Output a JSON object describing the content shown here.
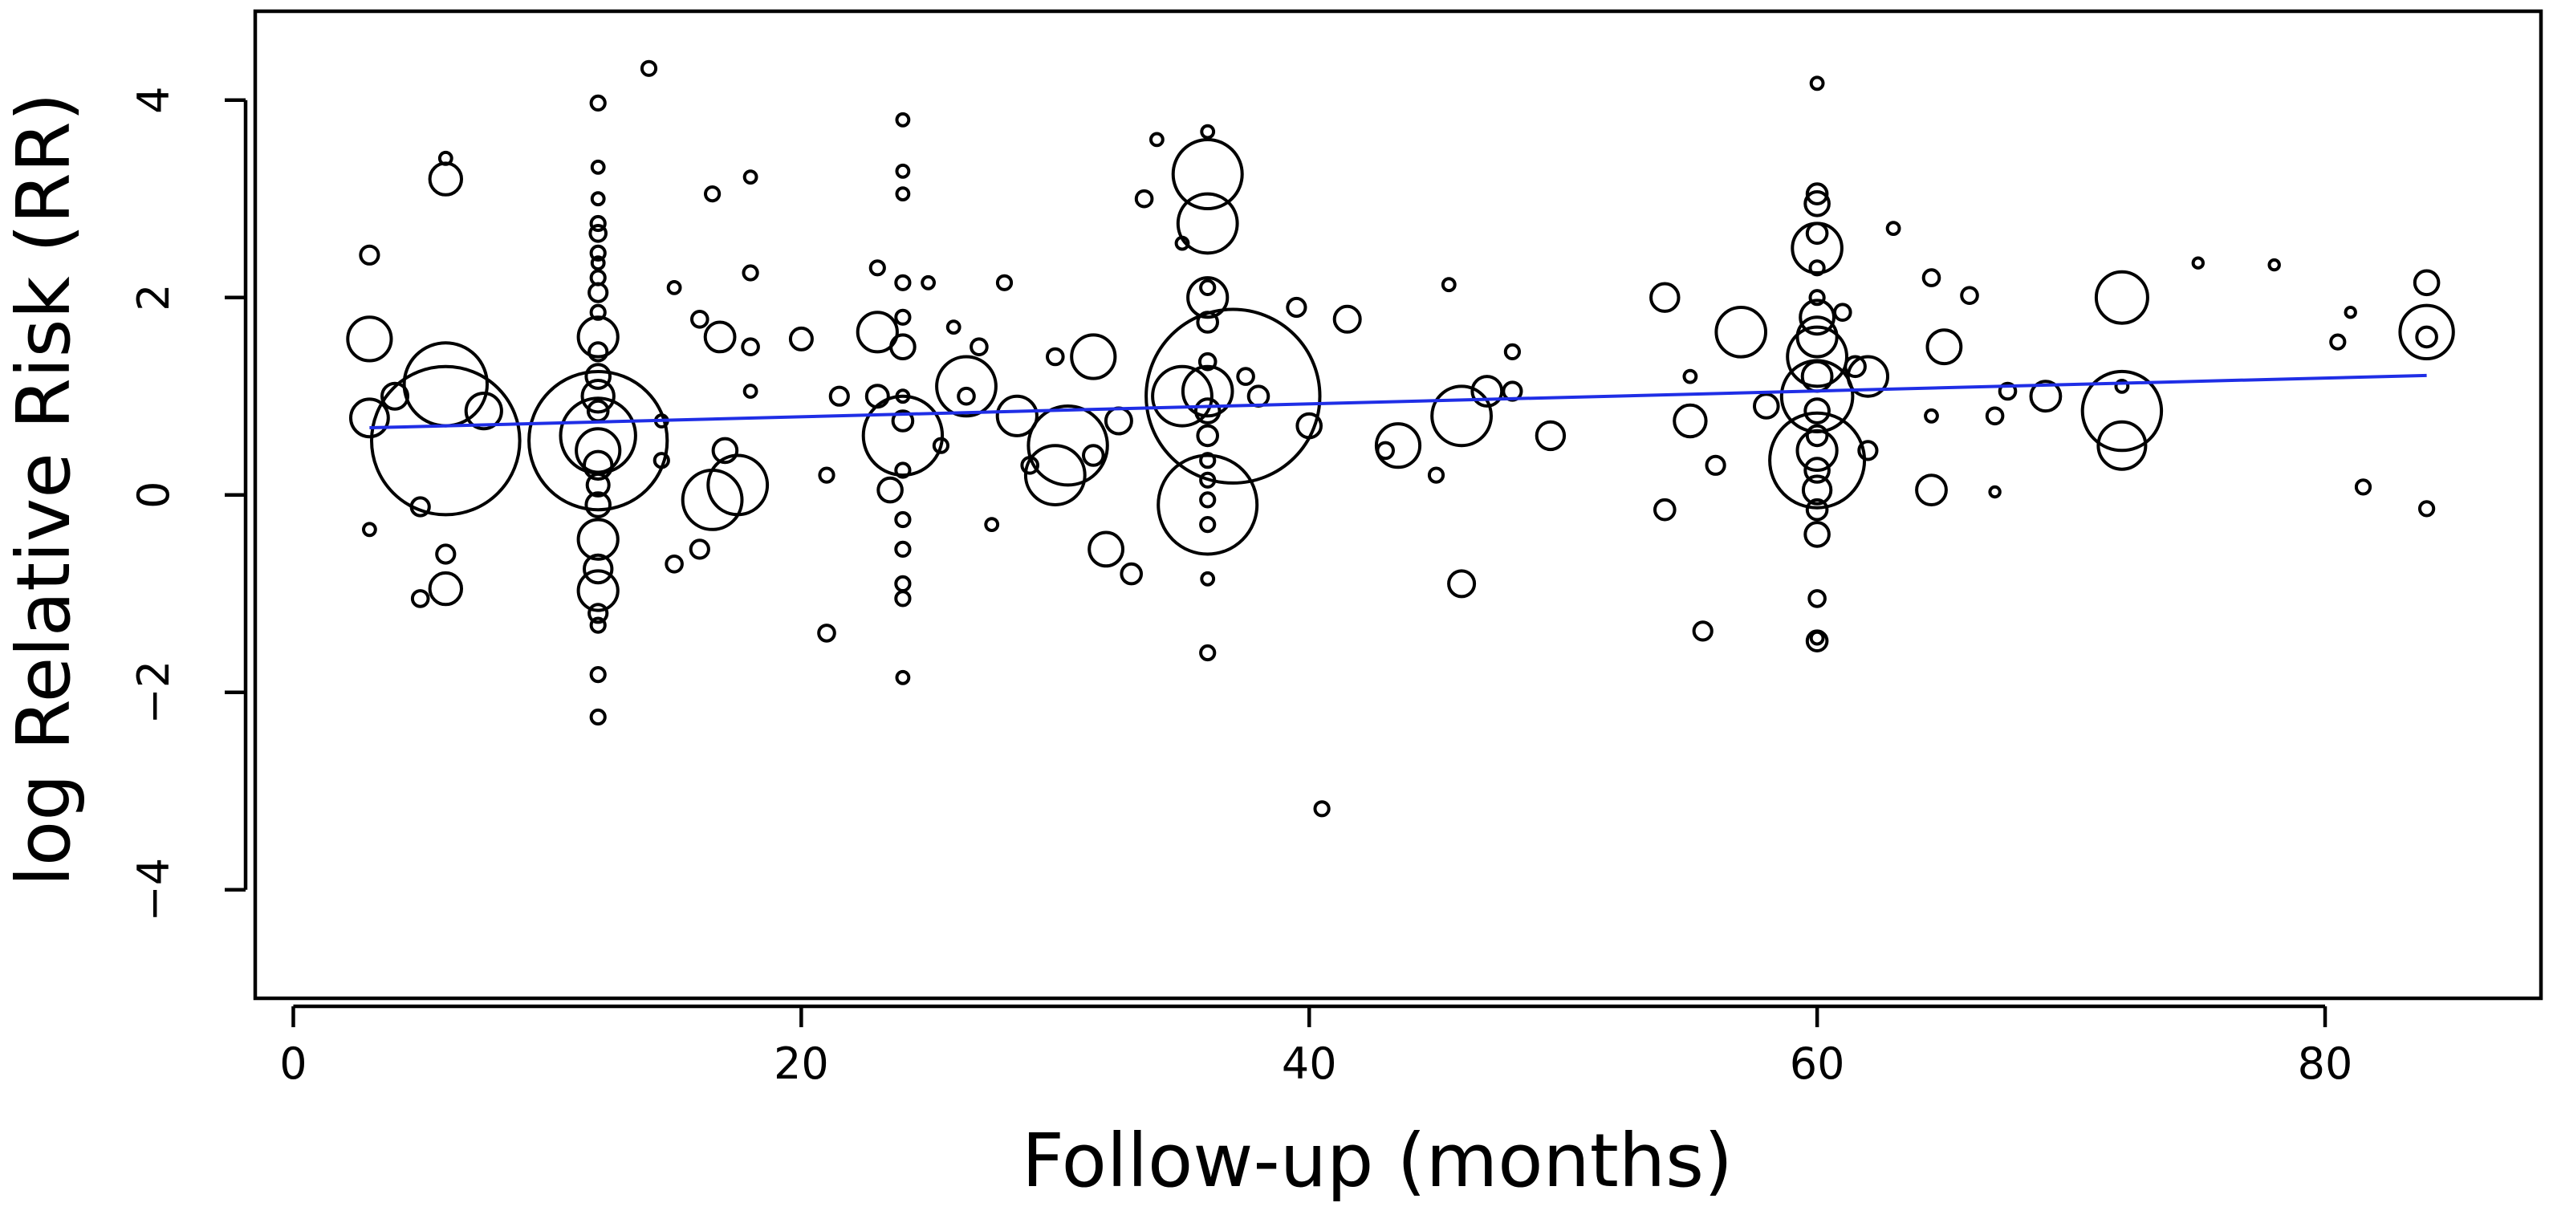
{
  "chart_data": {
    "type": "scatter",
    "subtype": "bubble meta-regression",
    "title": "",
    "xlabel": "Follow-up (months)",
    "ylabel": "log Relative Risk (RR)",
    "xlim": [
      -1.5,
      88.5
    ],
    "ylim": [
      -5.1,
      4.9
    ],
    "xticks": [
      0,
      20,
      40,
      60,
      80
    ],
    "yticks": [
      -4,
      -2,
      0,
      2,
      4
    ],
    "xtick_labels": [
      "0",
      "20",
      "40",
      "60",
      "80"
    ],
    "ytick_labels": [
      "−4",
      "−2",
      "0",
      "2",
      "4"
    ],
    "grid": false,
    "legend": "none",
    "marker": "open circle, size proportional to study weight",
    "trendline": {
      "color": "#1f2ee6",
      "x": [
        3,
        84
      ],
      "y": [
        0.68,
        1.21
      ]
    },
    "points": [
      {
        "x": 3,
        "y": 2.43,
        "r": 0.09
      },
      {
        "x": 3,
        "y": 1.58,
        "r": 0.22
      },
      {
        "x": 3,
        "y": 0.78,
        "r": 0.19
      },
      {
        "x": 3,
        "y": -0.35,
        "r": 0.06
      },
      {
        "x": 4,
        "y": 1.0,
        "r": 0.13
      },
      {
        "x": 5,
        "y": -0.12,
        "r": 0.09
      },
      {
        "x": 5,
        "y": -1.05,
        "r": 0.08
      },
      {
        "x": 6,
        "y": 3.41,
        "r": 0.06
      },
      {
        "x": 6,
        "y": 3.2,
        "r": 0.16
      },
      {
        "x": 6,
        "y": 1.12,
        "r": 0.42
      },
      {
        "x": 6,
        "y": 0.55,
        "r": 0.75
      },
      {
        "x": 6,
        "y": -0.6,
        "r": 0.09
      },
      {
        "x": 6,
        "y": -0.95,
        "r": 0.16
      },
      {
        "x": 7.5,
        "y": 0.85,
        "r": 0.18
      },
      {
        "x": 12,
        "y": 3.97,
        "r": 0.07
      },
      {
        "x": 12,
        "y": 3.32,
        "r": 0.06
      },
      {
        "x": 12,
        "y": 3.0,
        "r": 0.06
      },
      {
        "x": 12,
        "y": 2.75,
        "r": 0.07
      },
      {
        "x": 12,
        "y": 2.65,
        "r": 0.08
      },
      {
        "x": 12,
        "y": 2.45,
        "r": 0.07
      },
      {
        "x": 12,
        "y": 2.35,
        "r": 0.06
      },
      {
        "x": 12,
        "y": 2.2,
        "r": 0.07
      },
      {
        "x": 12,
        "y": 2.05,
        "r": 0.09
      },
      {
        "x": 12,
        "y": 1.85,
        "r": 0.07
      },
      {
        "x": 12,
        "y": 1.6,
        "r": 0.2
      },
      {
        "x": 12,
        "y": 1.45,
        "r": 0.09
      },
      {
        "x": 12,
        "y": 1.2,
        "r": 0.12
      },
      {
        "x": 12,
        "y": 1.0,
        "r": 0.16
      },
      {
        "x": 12,
        "y": 0.85,
        "r": 0.1
      },
      {
        "x": 12,
        "y": 0.6,
        "r": 0.38
      },
      {
        "x": 12,
        "y": 0.55,
        "r": 0.7
      },
      {
        "x": 12,
        "y": 0.45,
        "r": 0.22
      },
      {
        "x": 12,
        "y": 0.3,
        "r": 0.14
      },
      {
        "x": 12,
        "y": 0.1,
        "r": 0.11
      },
      {
        "x": 12,
        "y": -0.1,
        "r": 0.12
      },
      {
        "x": 12,
        "y": -0.45,
        "r": 0.2
      },
      {
        "x": 12,
        "y": -0.75,
        "r": 0.14
      },
      {
        "x": 12,
        "y": -0.97,
        "r": 0.2
      },
      {
        "x": 12,
        "y": -1.2,
        "r": 0.09
      },
      {
        "x": 12,
        "y": -1.32,
        "r": 0.07
      },
      {
        "x": 12,
        "y": -1.82,
        "r": 0.07
      },
      {
        "x": 12,
        "y": -2.25,
        "r": 0.07
      },
      {
        "x": 14,
        "y": 4.32,
        "r": 0.07
      },
      {
        "x": 14.5,
        "y": 0.75,
        "r": 0.06
      },
      {
        "x": 14.5,
        "y": 0.35,
        "r": 0.07
      },
      {
        "x": 15,
        "y": 2.1,
        "r": 0.06
      },
      {
        "x": 15,
        "y": -0.7,
        "r": 0.08
      },
      {
        "x": 16,
        "y": 1.78,
        "r": 0.08
      },
      {
        "x": 16,
        "y": -0.55,
        "r": 0.09
      },
      {
        "x": 16.5,
        "y": 3.05,
        "r": 0.07
      },
      {
        "x": 16.8,
        "y": 1.6,
        "r": 0.15
      },
      {
        "x": 17,
        "y": 0.45,
        "r": 0.12
      },
      {
        "x": 16.5,
        "y": -0.05,
        "r": 0.3
      },
      {
        "x": 17.5,
        "y": 0.1,
        "r": 0.3
      },
      {
        "x": 18,
        "y": 3.22,
        "r": 0.06
      },
      {
        "x": 18,
        "y": 2.25,
        "r": 0.07
      },
      {
        "x": 18,
        "y": 1.5,
        "r": 0.08
      },
      {
        "x": 18,
        "y": 1.05,
        "r": 0.06
      },
      {
        "x": 20,
        "y": 1.58,
        "r": 0.11
      },
      {
        "x": 21,
        "y": 0.2,
        "r": 0.07
      },
      {
        "x": 21,
        "y": -1.4,
        "r": 0.08
      },
      {
        "x": 21.5,
        "y": 1.0,
        "r": 0.09
      },
      {
        "x": 23,
        "y": 2.3,
        "r": 0.07
      },
      {
        "x": 23,
        "y": 1.65,
        "r": 0.2
      },
      {
        "x": 23,
        "y": 1.0,
        "r": 0.11
      },
      {
        "x": 24,
        "y": 3.8,
        "r": 0.06
      },
      {
        "x": 24,
        "y": 3.28,
        "r": 0.06
      },
      {
        "x": 24,
        "y": 3.05,
        "r": 0.06
      },
      {
        "x": 24,
        "y": 2.15,
        "r": 0.07
      },
      {
        "x": 24,
        "y": 1.8,
        "r": 0.07
      },
      {
        "x": 24,
        "y": 1.5,
        "r": 0.12
      },
      {
        "x": 24,
        "y": 1.0,
        "r": 0.06
      },
      {
        "x": 24,
        "y": 0.75,
        "r": 0.1
      },
      {
        "x": 24,
        "y": 0.6,
        "r": 0.4
      },
      {
        "x": 24,
        "y": 0.25,
        "r": 0.07
      },
      {
        "x": 24,
        "y": -0.25,
        "r": 0.07
      },
      {
        "x": 24,
        "y": -0.55,
        "r": 0.07
      },
      {
        "x": 24,
        "y": -0.9,
        "r": 0.07
      },
      {
        "x": 24,
        "y": -1.05,
        "r": 0.07
      },
      {
        "x": 24,
        "y": -1.85,
        "r": 0.06
      },
      {
        "x": 23.5,
        "y": 0.05,
        "r": 0.12
      },
      {
        "x": 25,
        "y": 2.15,
        "r": 0.06
      },
      {
        "x": 25.5,
        "y": 0.5,
        "r": 0.07
      },
      {
        "x": 26,
        "y": 1.7,
        "r": 0.06
      },
      {
        "x": 26.5,
        "y": 1.0,
        "r": 0.08
      },
      {
        "x": 26.5,
        "y": 1.1,
        "r": 0.3
      },
      {
        "x": 27,
        "y": 1.5,
        "r": 0.08
      },
      {
        "x": 27.5,
        "y": -0.3,
        "r": 0.06
      },
      {
        "x": 28,
        "y": 2.15,
        "r": 0.07
      },
      {
        "x": 28.5,
        "y": 0.8,
        "r": 0.2
      },
      {
        "x": 29,
        "y": 0.3,
        "r": 0.08
      },
      {
        "x": 30,
        "y": 1.4,
        "r": 0.08
      },
      {
        "x": 30,
        "y": 0.2,
        "r": 0.3
      },
      {
        "x": 30.5,
        "y": 0.5,
        "r": 0.4
      },
      {
        "x": 31.5,
        "y": 1.4,
        "r": 0.22
      },
      {
        "x": 31.5,
        "y": 0.4,
        "r": 0.1
      },
      {
        "x": 32,
        "y": -0.55,
        "r": 0.17
      },
      {
        "x": 32.5,
        "y": 0.75,
        "r": 0.13
      },
      {
        "x": 33,
        "y": -0.8,
        "r": 0.1
      },
      {
        "x": 33.5,
        "y": 3.0,
        "r": 0.08
      },
      {
        "x": 34,
        "y": 3.6,
        "r": 0.06
      },
      {
        "x": 35,
        "y": 2.55,
        "r": 0.06
      },
      {
        "x": 35,
        "y": 1.0,
        "r": 0.3
      },
      {
        "x": 36,
        "y": 3.68,
        "r": 0.06
      },
      {
        "x": 36,
        "y": 3.25,
        "r": 0.35
      },
      {
        "x": 36,
        "y": 2.75,
        "r": 0.3
      },
      {
        "x": 36,
        "y": 2.1,
        "r": 0.07
      },
      {
        "x": 36,
        "y": 2.0,
        "r": 0.2
      },
      {
        "x": 36,
        "y": 1.75,
        "r": 0.1
      },
      {
        "x": 36,
        "y": 1.35,
        "r": 0.08
      },
      {
        "x": 36,
        "y": 1.05,
        "r": 0.25
      },
      {
        "x": 36,
        "y": 0.85,
        "r": 0.12
      },
      {
        "x": 36,
        "y": 0.6,
        "r": 0.1
      },
      {
        "x": 36,
        "y": 0.35,
        "r": 0.07
      },
      {
        "x": 36,
        "y": 0.15,
        "r": 0.07
      },
      {
        "x": 36,
        "y": -0.05,
        "r": 0.07
      },
      {
        "x": 36,
        "y": -0.3,
        "r": 0.07
      },
      {
        "x": 36,
        "y": -0.85,
        "r": 0.06
      },
      {
        "x": 36,
        "y": -1.6,
        "r": 0.07
      },
      {
        "x": 36,
        "y": -0.1,
        "r": 0.5
      },
      {
        "x": 37,
        "y": 1.0,
        "r": 0.88
      },
      {
        "x": 37.5,
        "y": 1.2,
        "r": 0.08
      },
      {
        "x": 38,
        "y": 1.0,
        "r": 0.1
      },
      {
        "x": 39.5,
        "y": 1.9,
        "r": 0.09
      },
      {
        "x": 40,
        "y": 0.7,
        "r": 0.12
      },
      {
        "x": 40.5,
        "y": -3.18,
        "r": 0.07
      },
      {
        "x": 41.5,
        "y": 1.78,
        "r": 0.13
      },
      {
        "x": 43,
        "y": 0.45,
        "r": 0.08
      },
      {
        "x": 43.5,
        "y": 0.5,
        "r": 0.22
      },
      {
        "x": 45,
        "y": 0.2,
        "r": 0.07
      },
      {
        "x": 45.5,
        "y": 2.13,
        "r": 0.06
      },
      {
        "x": 46,
        "y": 0.8,
        "r": 0.3
      },
      {
        "x": 46,
        "y": -0.9,
        "r": 0.13
      },
      {
        "x": 47,
        "y": 1.05,
        "r": 0.15
      },
      {
        "x": 48,
        "y": 1.45,
        "r": 0.07
      },
      {
        "x": 48,
        "y": 1.05,
        "r": 0.09
      },
      {
        "x": 49.5,
        "y": 0.6,
        "r": 0.14
      },
      {
        "x": 54,
        "y": 2.0,
        "r": 0.14
      },
      {
        "x": 54,
        "y": -0.15,
        "r": 0.1
      },
      {
        "x": 55,
        "y": 1.2,
        "r": 0.06
      },
      {
        "x": 55,
        "y": 0.75,
        "r": 0.16
      },
      {
        "x": 55.5,
        "y": -1.38,
        "r": 0.09
      },
      {
        "x": 56,
        "y": 0.3,
        "r": 0.09
      },
      {
        "x": 57,
        "y": 1.65,
        "r": 0.25
      },
      {
        "x": 58,
        "y": 0.9,
        "r": 0.12
      },
      {
        "x": 60,
        "y": 4.17,
        "r": 0.06
      },
      {
        "x": 60,
        "y": 3.05,
        "r": 0.1
      },
      {
        "x": 60,
        "y": 2.95,
        "r": 0.12
      },
      {
        "x": 60,
        "y": 2.65,
        "r": 0.1
      },
      {
        "x": 60,
        "y": 2.5,
        "r": 0.25
      },
      {
        "x": 60,
        "y": 2.3,
        "r": 0.07
      },
      {
        "x": 60,
        "y": 2.0,
        "r": 0.07
      },
      {
        "x": 60,
        "y": 1.8,
        "r": 0.17
      },
      {
        "x": 60,
        "y": 1.6,
        "r": 0.2
      },
      {
        "x": 60,
        "y": 1.4,
        "r": 0.3
      },
      {
        "x": 60,
        "y": 1.2,
        "r": 0.15
      },
      {
        "x": 60,
        "y": 1.0,
        "r": 0.36
      },
      {
        "x": 60,
        "y": 0.85,
        "r": 0.12
      },
      {
        "x": 60,
        "y": 0.6,
        "r": 0.1
      },
      {
        "x": 60,
        "y": 0.45,
        "r": 0.2
      },
      {
        "x": 60,
        "y": 0.35,
        "r": 0.48
      },
      {
        "x": 60,
        "y": 0.25,
        "r": 0.12
      },
      {
        "x": 60,
        "y": 0.05,
        "r": 0.14
      },
      {
        "x": 60,
        "y": -0.15,
        "r": 0.1
      },
      {
        "x": 60,
        "y": -0.4,
        "r": 0.12
      },
      {
        "x": 60,
        "y": -1.05,
        "r": 0.08
      },
      {
        "x": 60,
        "y": -1.45,
        "r": 0.06
      },
      {
        "x": 60,
        "y": -1.48,
        "r": 0.1
      },
      {
        "x": 61,
        "y": 1.85,
        "r": 0.08
      },
      {
        "x": 61.5,
        "y": 1.3,
        "r": 0.1
      },
      {
        "x": 62,
        "y": 1.2,
        "r": 0.2
      },
      {
        "x": 62,
        "y": 0.45,
        "r": 0.09
      },
      {
        "x": 63,
        "y": 2.7,
        "r": 0.06
      },
      {
        "x": 64.5,
        "y": 2.2,
        "r": 0.08
      },
      {
        "x": 64.5,
        "y": 0.8,
        "r": 0.06
      },
      {
        "x": 64.5,
        "y": 0.05,
        "r": 0.15
      },
      {
        "x": 65,
        "y": 1.5,
        "r": 0.17
      },
      {
        "x": 66,
        "y": 2.02,
        "r": 0.08
      },
      {
        "x": 67,
        "y": 0.8,
        "r": 0.08
      },
      {
        "x": 67,
        "y": 0.03,
        "r": 0.05
      },
      {
        "x": 67.5,
        "y": 1.05,
        "r": 0.08
      },
      {
        "x": 69,
        "y": 1.0,
        "r": 0.15
      },
      {
        "x": 72,
        "y": 2.0,
        "r": 0.26
      },
      {
        "x": 72,
        "y": 1.1,
        "r": 0.06
      },
      {
        "x": 72,
        "y": 0.85,
        "r": 0.4
      },
      {
        "x": 72,
        "y": 0.5,
        "r": 0.24
      },
      {
        "x": 75,
        "y": 2.35,
        "r": 0.05
      },
      {
        "x": 78,
        "y": 2.33,
        "r": 0.05
      },
      {
        "x": 80.5,
        "y": 1.55,
        "r": 0.07
      },
      {
        "x": 81,
        "y": 1.85,
        "r": 0.05
      },
      {
        "x": 81.5,
        "y": 0.08,
        "r": 0.07
      },
      {
        "x": 84,
        "y": 2.15,
        "r": 0.12
      },
      {
        "x": 84,
        "y": 1.65,
        "r": 0.27
      },
      {
        "x": 84,
        "y": 1.6,
        "r": 0.1
      },
      {
        "x": 84,
        "y": -0.14,
        "r": 0.07
      }
    ]
  }
}
